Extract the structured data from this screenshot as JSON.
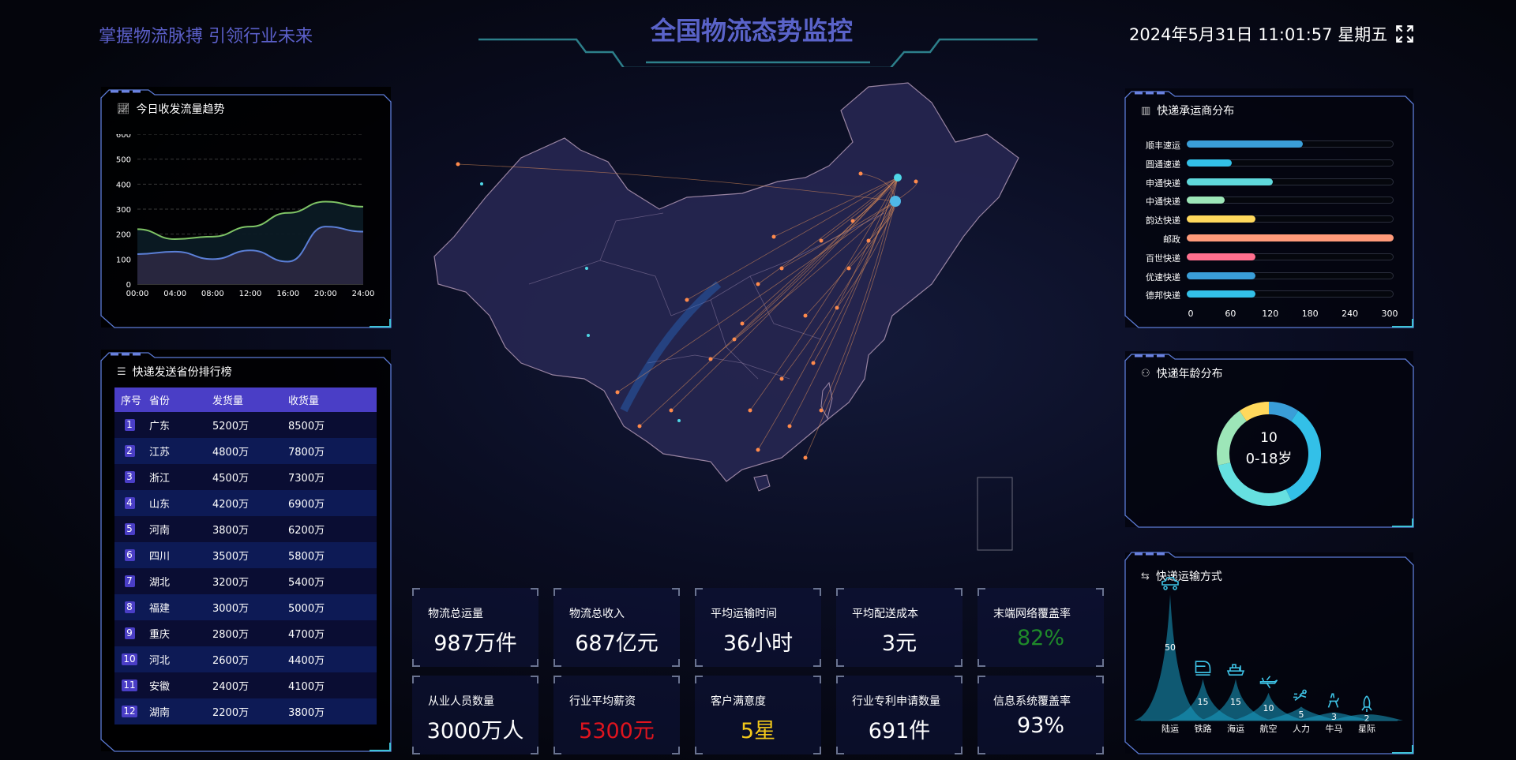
{
  "header": {
    "subtitle": "掌握物流脉搏 引领行业未来",
    "title": "全国物流态势监控",
    "datetime": "2024年5月31日 11:01:57 星期五",
    "fullscreen_icon": "fullscreen-icon"
  },
  "colors": {
    "accent": "#5a63c9",
    "frame": "#5c7bd6",
    "frame_accent": "#3fc3d8",
    "table_header": "#4a3ec6"
  },
  "trend": {
    "title": "今日收发流量趋势",
    "icon": "line-chart-icon",
    "chart_data": {
      "type": "area",
      "x": [
        "00:00",
        "04:00",
        "08:00",
        "12:00",
        "16:00",
        "20:00",
        "24:00"
      ],
      "ylim": [
        0,
        600
      ],
      "yticks": [
        0,
        100,
        200,
        300,
        400,
        500,
        600
      ],
      "grid": true,
      "series": [
        {
          "values": [
            220,
            180,
            190,
            230,
            285,
            330,
            310
          ],
          "color": "#7fc466"
        },
        {
          "values": [
            120,
            130,
            100,
            135,
            90,
            230,
            210
          ],
          "color": "#5b7fd6"
        }
      ]
    }
  },
  "ranking": {
    "title": "快递发送省份排行榜",
    "icon": "list-icon",
    "columns": [
      "序号",
      "省份",
      "发货量",
      "收货量"
    ],
    "rows": [
      [
        "1",
        "广东",
        "5200万",
        "8500万"
      ],
      [
        "2",
        "江苏",
        "4800万",
        "7800万"
      ],
      [
        "3",
        "浙江",
        "4500万",
        "7300万"
      ],
      [
        "4",
        "山东",
        "4200万",
        "6900万"
      ],
      [
        "5",
        "河南",
        "3800万",
        "6200万"
      ],
      [
        "6",
        "四川",
        "3500万",
        "5800万"
      ],
      [
        "7",
        "湖北",
        "3200万",
        "5400万"
      ],
      [
        "8",
        "福建",
        "3000万",
        "5000万"
      ],
      [
        "9",
        "重庆",
        "2800万",
        "4700万"
      ],
      [
        "10",
        "河北",
        "2600万",
        "4400万"
      ],
      [
        "11",
        "安徽",
        "2400万",
        "4100万"
      ],
      [
        "12",
        "湖南",
        "2200万",
        "3800万"
      ]
    ]
  },
  "kpis": [
    {
      "label": "物流总运量",
      "value": "987万件",
      "color": "#ffffff"
    },
    {
      "label": "物流总收入",
      "value": "687亿元",
      "color": "#ffffff"
    },
    {
      "label": "平均运输时间",
      "value": "36小时",
      "color": "#ffffff"
    },
    {
      "label": "平均配送成本",
      "value": "3元",
      "color": "#ffffff"
    },
    {
      "label": "末端网络覆盖率",
      "value": "82%",
      "color": "#1f8a2a"
    },
    {
      "label": "从业人员数量",
      "value": "3000万人",
      "color": "#ffffff"
    },
    {
      "label": "行业平均薪资",
      "value": "5300元",
      "color": "#e0141e"
    },
    {
      "label": "客户满意度",
      "value": "5星",
      "color": "#f2c81a"
    },
    {
      "label": "行业专利申请数量",
      "value": "691件",
      "color": "#ffffff"
    },
    {
      "label": "信息系统覆盖率",
      "value": "93%",
      "color": "#ffffff"
    }
  ],
  "carriers": {
    "title": "快递承运商分布",
    "icon": "bar-chart-icon",
    "chart_data": {
      "type": "bar",
      "orientation": "horizontal",
      "categories": [
        "顺丰速运",
        "圆通速递",
        "申通快递",
        "中通快递",
        "韵达快递",
        "邮政",
        "百世快递",
        "优速快递",
        "德邦快递"
      ],
      "values": [
        168,
        65,
        125,
        55,
        100,
        300,
        100,
        100,
        100
      ],
      "colors": [
        "#3a9ed8",
        "#33c0e8",
        "#5fd8dc",
        "#9de6b8",
        "#ffd85c",
        "#ff9a7a",
        "#ff6f8e",
        "#3a9ed8",
        "#33c0e8"
      ],
      "xlim": [
        0,
        300
      ],
      "xticks": [
        0,
        60,
        120,
        180,
        240,
        300
      ]
    }
  },
  "age": {
    "title": "快递年龄分布",
    "icon": "users-icon",
    "center_value": "10",
    "center_label": "0-18岁",
    "chart_data": {
      "type": "pie",
      "values": [
        10,
        35,
        30,
        20,
        10
      ],
      "colors": [
        "#3a9ed8",
        "#33c0e8",
        "#66e0e0",
        "#9de6b8",
        "#ffd85c"
      ]
    }
  },
  "transport": {
    "title": "快递运输方式",
    "icon": "route-icon",
    "chart_data": {
      "type": "bar",
      "categories": [
        "陆运",
        "铁路",
        "海运",
        "航空",
        "人力",
        "牛马",
        "星际"
      ],
      "values": [
        50,
        15,
        15,
        10,
        5,
        3,
        2
      ],
      "icons": [
        "car-icon",
        "train-icon",
        "ship-icon",
        "plane-icon",
        "runner-icon",
        "deer-icon",
        "rocket-icon"
      ]
    }
  }
}
